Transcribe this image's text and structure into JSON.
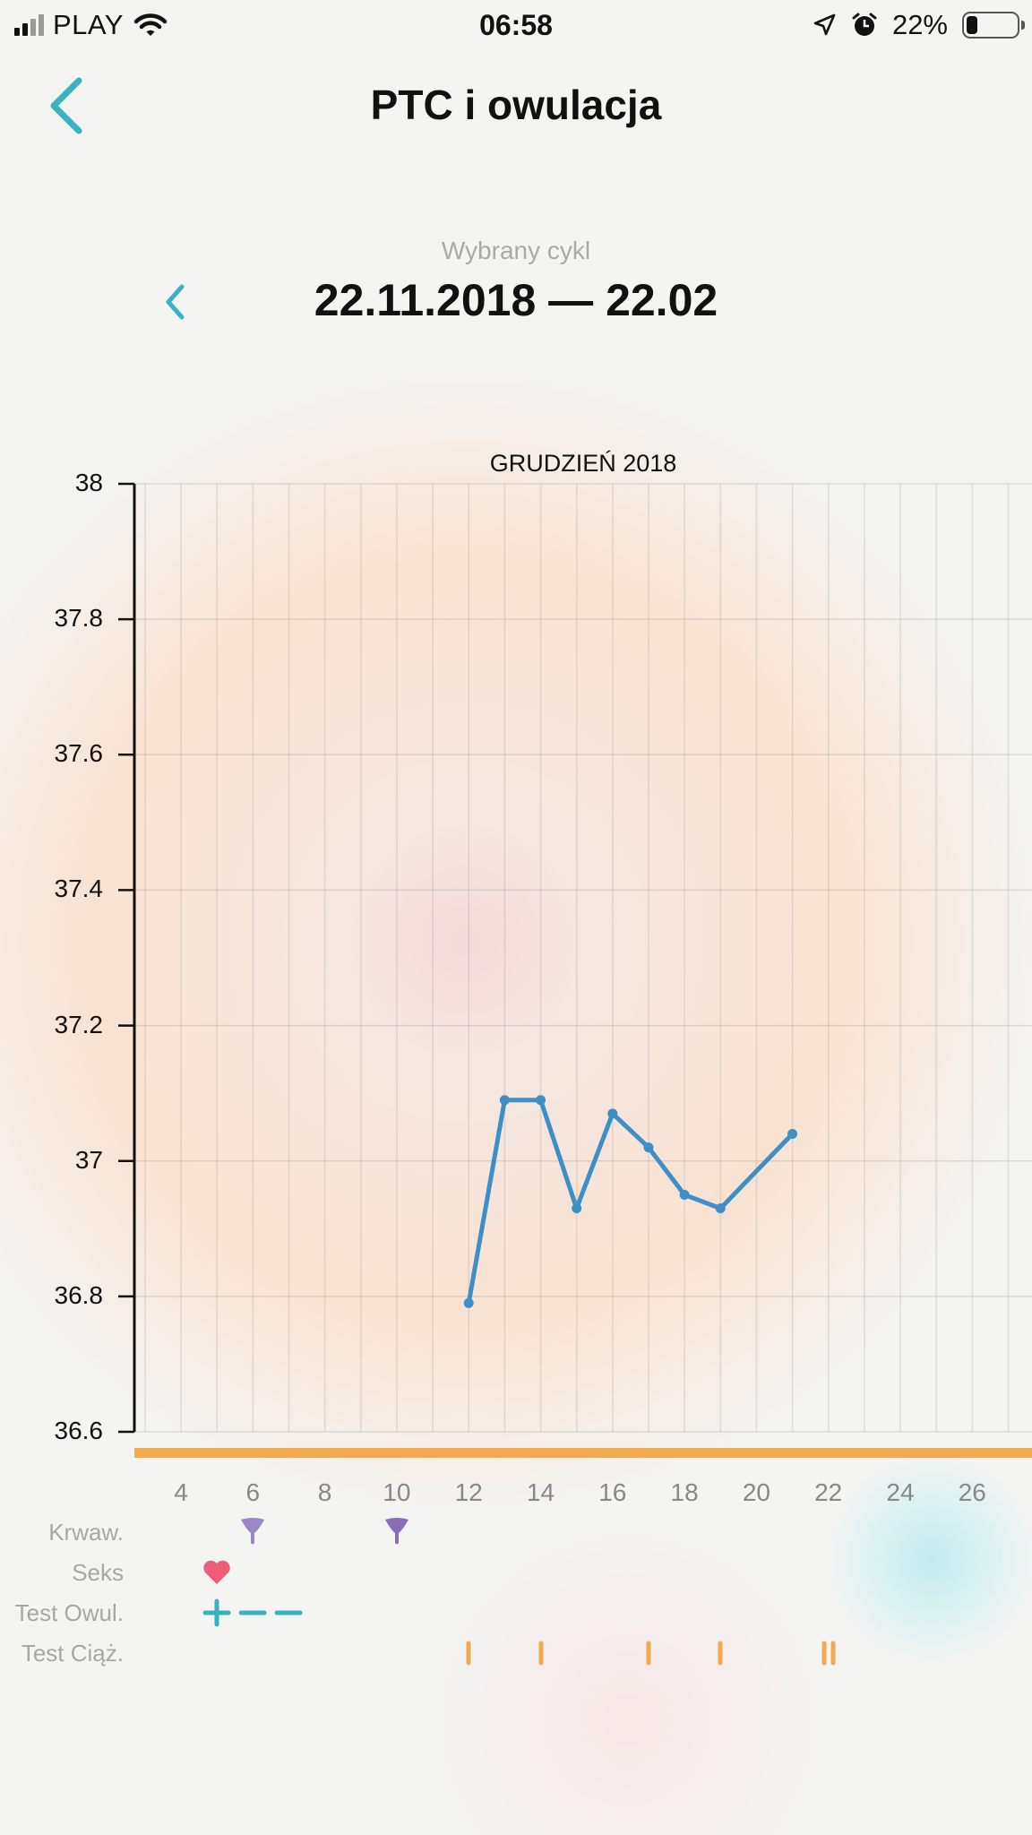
{
  "status_bar": {
    "carrier": "PLAY",
    "time": "06:58",
    "battery_percent": "22%",
    "battery_level": 0.22,
    "icons": [
      "signal-icon",
      "wifi-icon",
      "location-icon",
      "alarm-icon",
      "battery-icon"
    ]
  },
  "header": {
    "title": "PTC i owulacja",
    "back_icon": "chevron-left-icon"
  },
  "cycle": {
    "label": "Wybrany cykl",
    "range": "22.11.2018 — 22.02",
    "prev_icon": "chevron-left-icon"
  },
  "colors": {
    "accent": "#3ab3c0",
    "line": "#3d8fc6",
    "axis_bar": "#f3a94f",
    "bleeding": "#8a6db8",
    "heart": "#ee5d78",
    "pregnancy_test": "#f3a94f",
    "ovulation_test": "#3ab3c0"
  },
  "chart_data": {
    "type": "line",
    "title": "GRUDZIEŃ 2018",
    "xlabel": "",
    "ylabel": "",
    "ylim": [
      36.6,
      38
    ],
    "y_ticks": [
      "38",
      "37.8",
      "37.6",
      "37.4",
      "37.2",
      "37",
      "36.8",
      "36.6"
    ],
    "x_ticks": [
      "4",
      "6",
      "8",
      "10",
      "12",
      "14",
      "16",
      "18",
      "20",
      "22",
      "24",
      "26"
    ],
    "grid": true,
    "series": [
      {
        "x": [
          12,
          13,
          14,
          15,
          16,
          17,
          18,
          19,
          21
        ],
        "y": [
          36.79,
          37.09,
          37.09,
          36.93,
          37.07,
          37.02,
          36.95,
          36.93,
          37.04
        ]
      }
    ]
  },
  "tracking_rows": [
    {
      "label": "Krwaw.",
      "icon": "bleeding-drop-icon",
      "days": [
        6,
        10
      ]
    },
    {
      "label": "Seks",
      "icon": "heart-icon",
      "days": [
        5
      ]
    },
    {
      "label": "Test Owul.",
      "icon": "ovulation-test-icon",
      "marks": [
        {
          "day": 5,
          "result": "+"
        },
        {
          "day": 6,
          "result": "−"
        },
        {
          "day": 7,
          "result": "−"
        }
      ]
    },
    {
      "label": "Test Ciąż.",
      "icon": "pregnancy-test-icon",
      "days": [
        12,
        14,
        17,
        19,
        22
      ]
    }
  ]
}
